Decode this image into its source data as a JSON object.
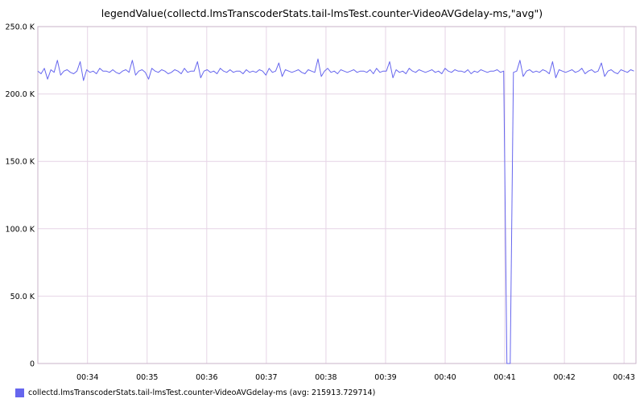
{
  "chart_data": {
    "type": "line",
    "title": "legendValue(collectd.lmsTranscoderStats.tail-lmsTest.counter-VideoAVGdelay-ms,\"avg\")",
    "xlabel": "",
    "ylabel": "",
    "x_ticks": [
      "00:34",
      "00:35",
      "00:36",
      "00:37",
      "00:38",
      "00:39",
      "00:40",
      "00:41",
      "00:42",
      "00:43"
    ],
    "x_tick_minutes": [
      34,
      35,
      36,
      37,
      38,
      39,
      40,
      41,
      42,
      43
    ],
    "xlim": [
      "00:33:10",
      "00:43:12"
    ],
    "y_ticks": [
      "0",
      "50.0 K",
      "100.0 K",
      "150.0 K",
      "200.0 K",
      "250.0 K"
    ],
    "y_tick_values": [
      0,
      50000,
      100000,
      150000,
      200000,
      250000
    ],
    "ylim": [
      0,
      250000
    ],
    "grid": true,
    "legend_position": "bottom-left",
    "series": [
      {
        "name": "collectd.lmsTranscoderStats.tail-lmsTest.counter-VideoAVGdelay-ms (avg: 215913.729714)",
        "color": "#6666ee",
        "x_range": [
          "00:33:10",
          "00:43:10"
        ],
        "values": [
          217000,
          215000,
          219000,
          211000,
          218000,
          216000,
          225000,
          214000,
          217000,
          218000,
          216000,
          215000,
          217000,
          224000,
          210000,
          218000,
          216000,
          217000,
          215000,
          219000,
          217000,
          217000,
          216000,
          218000,
          216000,
          215000,
          217000,
          218000,
          216000,
          225000,
          214000,
          217000,
          218000,
          216000,
          211000,
          219000,
          217000,
          216000,
          218000,
          217000,
          215000,
          216000,
          218000,
          217000,
          215000,
          219000,
          216000,
          217000,
          217000,
          224000,
          212000,
          217000,
          218000,
          216000,
          217000,
          215000,
          219000,
          217000,
          216000,
          218000,
          216000,
          217000,
          217000,
          215000,
          218000,
          216000,
          217000,
          216000,
          218000,
          217000,
          214000,
          219000,
          216000,
          217000,
          223000,
          213000,
          218000,
          217000,
          216000,
          217000,
          218000,
          216000,
          215000,
          218000,
          217000,
          216000,
          226000,
          213000,
          217000,
          219000,
          216000,
          217000,
          215000,
          218000,
          217000,
          216000,
          217000,
          218000,
          216000,
          217000,
          217000,
          216000,
          218000,
          215000,
          219000,
          216000,
          217000,
          217000,
          224000,
          212000,
          218000,
          216000,
          217000,
          215000,
          219000,
          217000,
          216000,
          218000,
          217000,
          216000,
          217000,
          218000,
          216000,
          217000,
          215000,
          219000,
          217000,
          216000,
          218000,
          217000,
          217000,
          216000,
          218000,
          215000,
          217000,
          216000,
          218000,
          217000,
          216000,
          217000,
          217000,
          218000,
          216000,
          217000,
          0,
          0,
          216000,
          217000,
          225000,
          213000,
          217000,
          218000,
          216000,
          217000,
          216000,
          218000,
          217000,
          215000,
          224000,
          212000,
          218000,
          217000,
          216000,
          217000,
          218000,
          216000,
          217000,
          219000,
          215000,
          217000,
          218000,
          216000,
          217000,
          223000,
          213000,
          217000,
          218000,
          216000,
          215000,
          218000,
          217000,
          216000,
          218000,
          217000
        ]
      }
    ]
  }
}
